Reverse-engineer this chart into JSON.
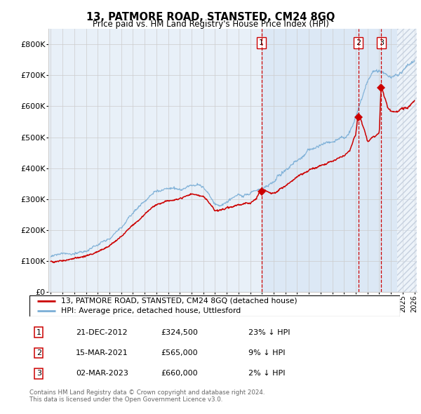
{
  "title1": "13, PATMORE ROAD, STANSTED, CM24 8GQ",
  "title2": "Price paid vs. HM Land Registry's House Price Index (HPI)",
  "ylim": [
    0,
    850000
  ],
  "yticks": [
    0,
    100000,
    200000,
    300000,
    400000,
    500000,
    600000,
    700000,
    800000
  ],
  "ytick_labels": [
    "£0",
    "£100K",
    "£200K",
    "£300K",
    "£400K",
    "£500K",
    "£600K",
    "£700K",
    "£800K"
  ],
  "hpi_color": "#7aaed6",
  "price_color": "#cc0000",
  "vline_color": "#cc0000",
  "sale_dates": [
    2012.97,
    2021.21,
    2023.17
  ],
  "sale_prices": [
    324500,
    565000,
    660000
  ],
  "sale_labels": [
    "1",
    "2",
    "3"
  ],
  "legend_price": "13, PATMORE ROAD, STANSTED, CM24 8GQ (detached house)",
  "legend_hpi": "HPI: Average price, detached house, Uttlesford",
  "table_rows": [
    [
      "1",
      "21-DEC-2012",
      "£324,500",
      "23% ↓ HPI"
    ],
    [
      "2",
      "15-MAR-2021",
      "£565,000",
      "9% ↓ HPI"
    ],
    [
      "3",
      "02-MAR-2023",
      "£660,000",
      "2% ↓ HPI"
    ]
  ],
  "footnote1": "Contains HM Land Registry data © Crown copyright and database right 2024.",
  "footnote2": "This data is licensed under the Open Government Licence v3.0.",
  "bg_color": "#e8f0f8",
  "highlight_bg": "#dce8f5",
  "future_start": 2024.5,
  "xlim_left": 1994.8,
  "xlim_right": 2026.2,
  "grid_color": "#cccccc"
}
